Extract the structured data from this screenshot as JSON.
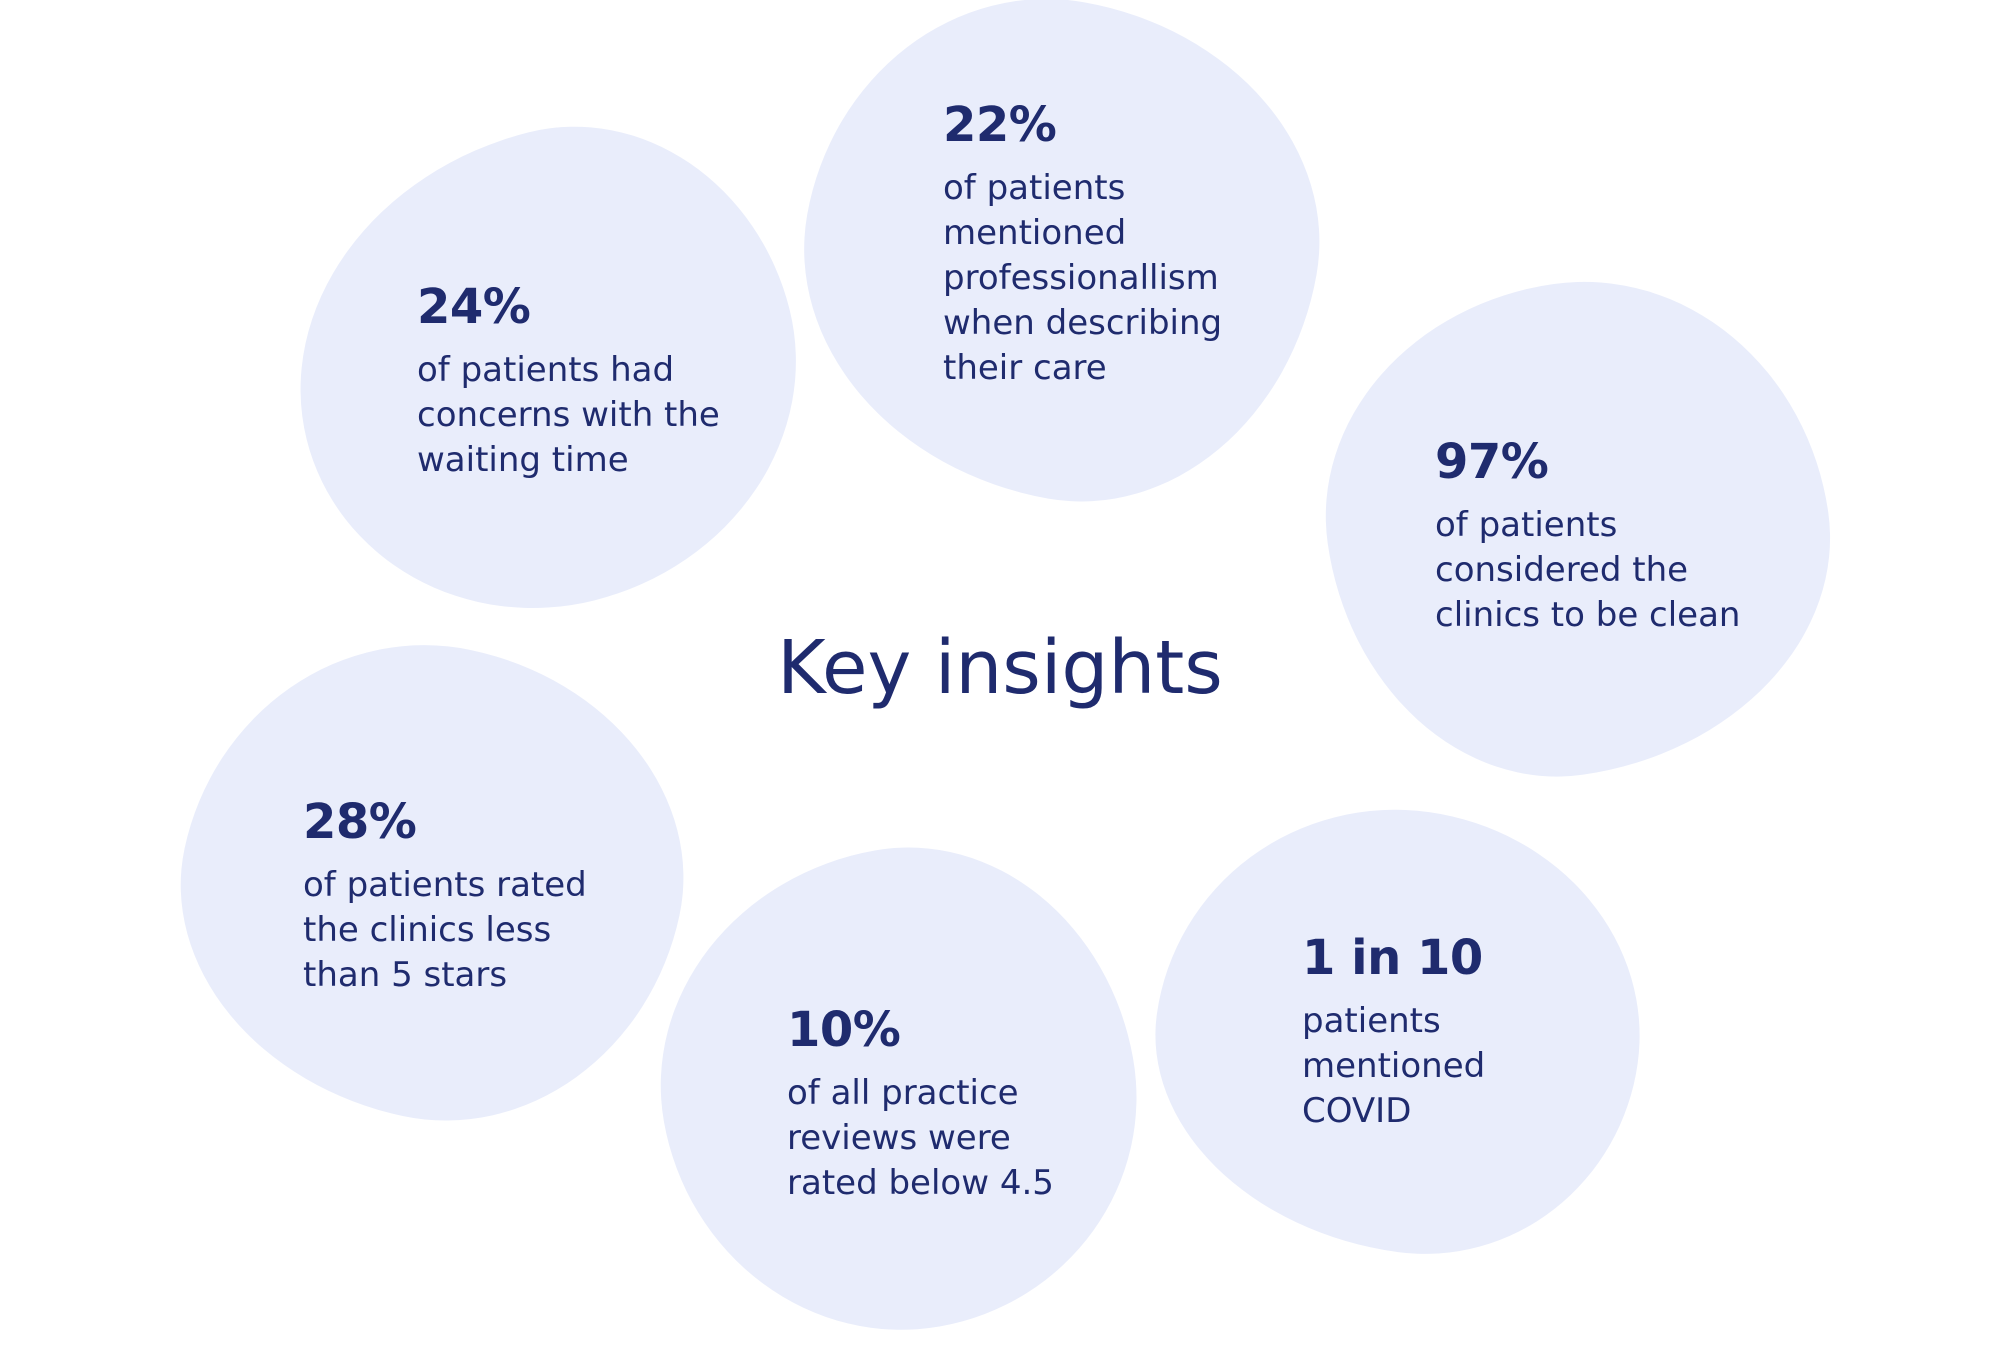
{
  "title": "Key insights",
  "colors": {
    "blob": "#e9edfb",
    "text": "#1f2b6e",
    "background": "#ffffff"
  },
  "insights": [
    {
      "id": "24",
      "value": "24%",
      "description": "of patients had\nconcerns with the\nwaiting time"
    },
    {
      "id": "22",
      "value": "22%",
      "description": "of patients\nmentioned\nprofessionallism\nwhen describing\ntheir care"
    },
    {
      "id": "97",
      "value": "97%",
      "description": "of patients\nconsidered the\nclinics to be clean"
    },
    {
      "id": "28",
      "value": "28%",
      "description": "of patients rated\nthe clinics less\nthan 5 stars"
    },
    {
      "id": "10",
      "value": "10%",
      "description": "of all practice\nreviews were\nrated below 4.5"
    },
    {
      "id": "1in10",
      "value": "1 in 10",
      "description": "patients\nmentioned\nCOVID"
    }
  ]
}
